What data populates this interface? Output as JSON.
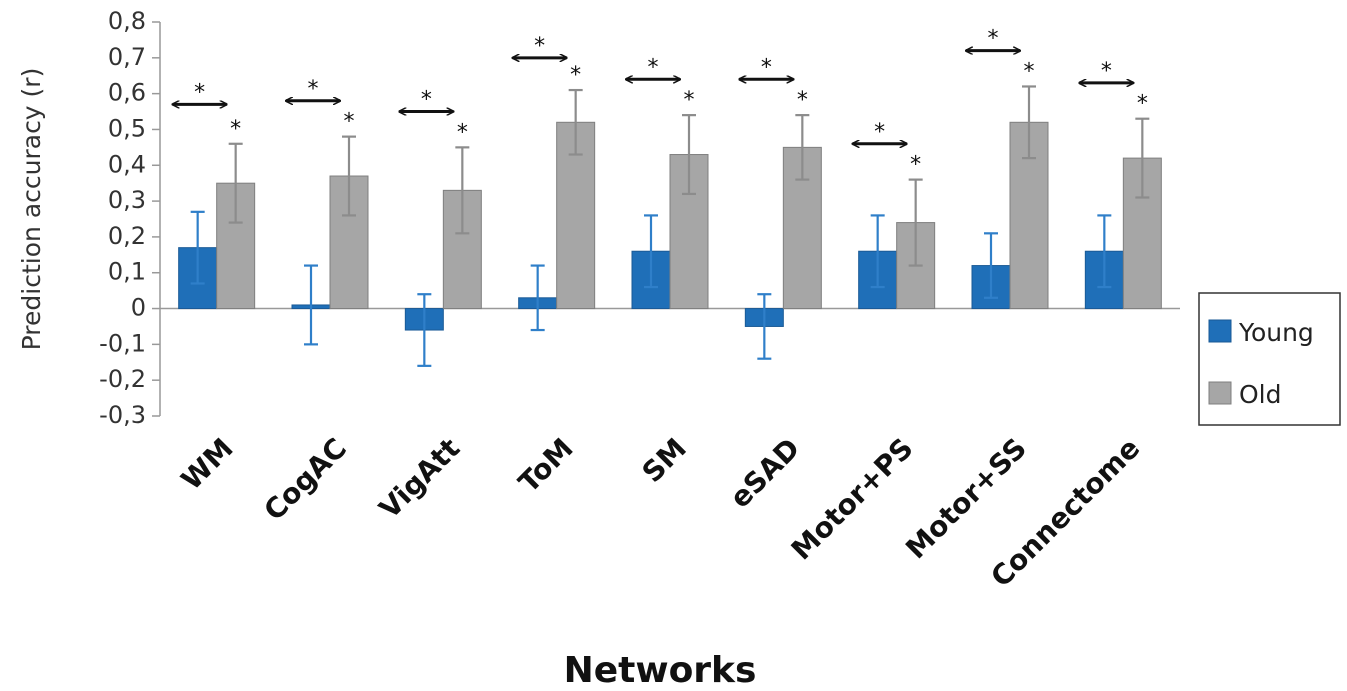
{
  "chart_data": {
    "type": "bar",
    "title": "",
    "xlabel": "Networks",
    "ylabel": "Prediction accuracy (r)",
    "ylim": [
      -0.3,
      0.8
    ],
    "yticks": [
      "-0,3",
      "-0,2",
      "-0,1",
      "0",
      "0,1",
      "0,2",
      "0,3",
      "0,4",
      "0,5",
      "0,6",
      "0,7",
      "0,8"
    ],
    "ytick_values": [
      -0.3,
      -0.2,
      -0.1,
      0,
      0.1,
      0.2,
      0.3,
      0.4,
      0.5,
      0.6,
      0.7,
      0.8
    ],
    "categories": [
      "WM",
      "CogAC",
      "VigAtt",
      "ToM",
      "SM",
      "eSAD",
      "Motor+PS",
      "Motor+SS",
      "Connectome"
    ],
    "series": [
      {
        "name": "Young",
        "color": "#1f6fb8",
        "values": [
          0.17,
          0.01,
          -0.06,
          0.03,
          0.16,
          -0.05,
          0.16,
          0.12,
          0.16
        ],
        "error_low": [
          0.07,
          -0.1,
          -0.16,
          -0.06,
          0.06,
          -0.14,
          0.06,
          0.03,
          0.06
        ],
        "error_high": [
          0.27,
          0.12,
          0.04,
          0.12,
          0.26,
          0.04,
          0.26,
          0.21,
          0.26
        ]
      },
      {
        "name": "Old",
        "color": "#a6a6a6",
        "values": [
          0.35,
          0.37,
          0.33,
          0.52,
          0.43,
          0.45,
          0.24,
          0.52,
          0.42
        ],
        "error_low": [
          0.24,
          0.26,
          0.21,
          0.43,
          0.32,
          0.36,
          0.12,
          0.42,
          0.31
        ],
        "error_high": [
          0.46,
          0.48,
          0.45,
          0.61,
          0.54,
          0.54,
          0.36,
          0.62,
          0.53
        ]
      }
    ],
    "significance_marker": "*",
    "old_significant": [
      true,
      true,
      true,
      true,
      true,
      true,
      true,
      true,
      true
    ],
    "comparison_bracket_y": [
      0.57,
      0.58,
      0.55,
      0.7,
      0.64,
      0.64,
      0.46,
      0.72,
      0.63
    ],
    "legend_position": "right",
    "grid": false
  }
}
